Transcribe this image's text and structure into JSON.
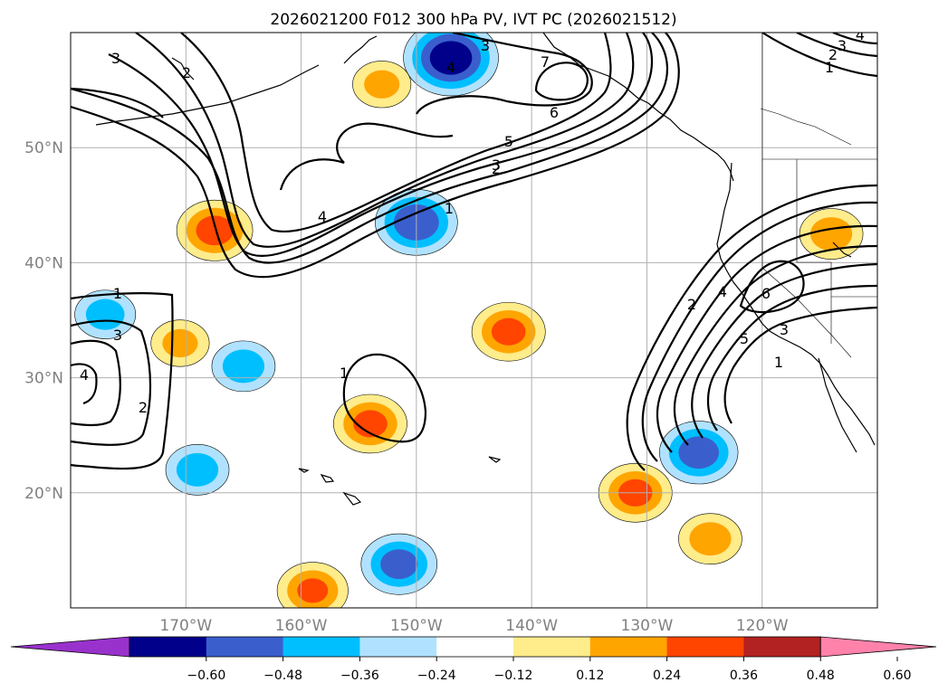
{
  "chart_data": {
    "type": "contour_map",
    "title": "2026021200 F012 300 hPa PV, IVT PC (2026021512)",
    "map": {
      "lon_range": [
        -180,
        -110
      ],
      "lat_range": [
        10,
        60
      ],
      "grid": true,
      "x_ticks": [
        {
          "value": -170,
          "label": "170°W"
        },
        {
          "value": -160,
          "label": "160°W"
        },
        {
          "value": -150,
          "label": "150°W"
        },
        {
          "value": -140,
          "label": "140°W"
        },
        {
          "value": -130,
          "label": "130°W"
        },
        {
          "value": -120,
          "label": "120°W"
        }
      ],
      "y_ticks": [
        {
          "value": 20,
          "label": "20°N"
        },
        {
          "value": 30,
          "label": "30°N"
        },
        {
          "value": 40,
          "label": "40°N"
        },
        {
          "value": 50,
          "label": "50°N"
        }
      ]
    },
    "colorbar": {
      "extend": "both",
      "levels": [
        -0.72,
        -0.6,
        -0.48,
        -0.36,
        -0.24,
        -0.12,
        0.12,
        0.24,
        0.36,
        0.48,
        0.6,
        0.72
      ],
      "tick_values": [
        -0.6,
        -0.48,
        -0.36,
        -0.24,
        -0.12,
        0.12,
        0.24,
        0.36,
        0.48,
        0.6
      ],
      "tick_labels": [
        "−0.60",
        "−0.48",
        "−0.36",
        "−0.24",
        "−0.12",
        "0.12",
        "0.24",
        "0.36",
        "0.48",
        "0.60"
      ],
      "colors": [
        "#9932cc",
        "#00008b",
        "#3a5fcd",
        "#00bfff",
        "#b0e2ff",
        "#ffffff",
        "#ffec8b",
        "#ffa500",
        "#ff4500",
        "#b22222",
        "#ff82ab"
      ]
    },
    "shaded_anomalies": [
      {
        "lon": -167.5,
        "lat": 42.8,
        "peak": 0.4
      },
      {
        "lon": -150.0,
        "lat": 43.5,
        "peak": -0.45
      },
      {
        "lon": -147.0,
        "lat": 57.8,
        "peak": -0.55
      },
      {
        "lon": -142.0,
        "lat": 34.0,
        "peak": 0.38
      },
      {
        "lon": -151.5,
        "lat": 13.8,
        "peak": -0.4
      },
      {
        "lon": -125.5,
        "lat": 23.5,
        "peak": -0.42
      },
      {
        "lon": -131.0,
        "lat": 20.0,
        "peak": 0.38
      },
      {
        "lon": -124.5,
        "lat": 16.0,
        "peak": 0.3
      },
      {
        "lon": -154.0,
        "lat": 26.0,
        "peak": 0.38
      },
      {
        "lon": -114.0,
        "lat": 42.5,
        "peak": 0.3
      },
      {
        "lon": -165.0,
        "lat": 31.0,
        "peak": -0.3
      },
      {
        "lon": -177.0,
        "lat": 35.5,
        "peak": -0.28
      },
      {
        "lon": -170.5,
        "lat": 33.0,
        "peak": 0.26
      },
      {
        "lon": -159.0,
        "lat": 11.5,
        "peak": 0.36
      },
      {
        "lon": -153.0,
        "lat": 55.5,
        "peak": 0.26
      },
      {
        "lon": -169.0,
        "lat": 22.0,
        "peak": -0.3
      }
    ],
    "contour_labels": [
      "1",
      "2",
      "3",
      "4",
      "5",
      "6",
      "7"
    ]
  }
}
